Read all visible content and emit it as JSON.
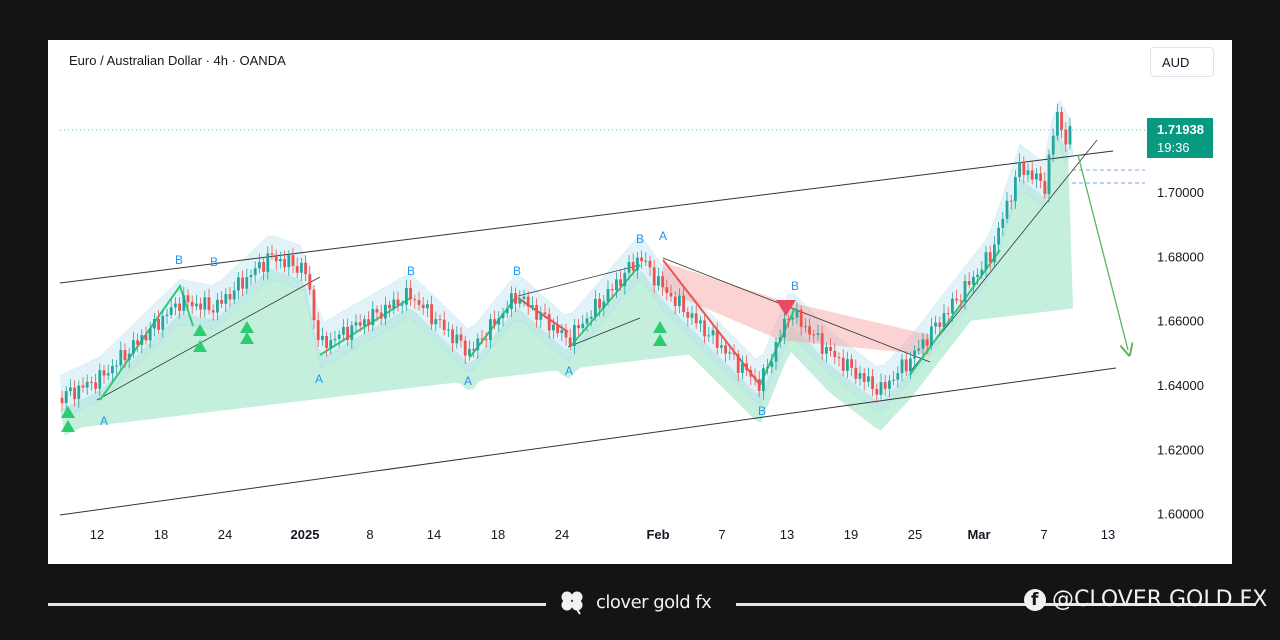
{
  "chart": {
    "title": "Euro / Australian Dollar · 4h · OANDA",
    "currency": "AUD",
    "last_price": "1.71938",
    "countdown": "19:36"
  },
  "chart_data": {
    "type": "candlestick",
    "symbol": "EURAUD",
    "timeframe": "4h",
    "x_ticks": [
      "12",
      "18",
      "24",
      "2025",
      "8",
      "14",
      "18",
      "24",
      "Feb",
      "7",
      "13",
      "19",
      "25",
      "Mar",
      "7",
      "13"
    ],
    "y_ticks": [
      "1.60000",
      "1.62000",
      "1.64000",
      "1.66000",
      "1.68000",
      "1.70000"
    ],
    "ylim": [
      1.6,
      1.73
    ],
    "price_path": [
      [
        "12",
        1.642
      ],
      [
        "18",
        1.666
      ],
      [
        "24",
        1.672
      ],
      [
        "2025",
        1.678
      ],
      [
        "8",
        1.656
      ],
      [
        "14",
        1.652
      ],
      [
        "18",
        1.662
      ],
      [
        "24",
        1.656
      ],
      [
        "Feb",
        1.668
      ],
      [
        "7",
        1.647
      ],
      [
        "13",
        1.658
      ],
      [
        "19",
        1.643
      ],
      [
        "25",
        1.65
      ],
      [
        "Mar",
        1.672
      ],
      [
        "7",
        1.708
      ],
      [
        "13",
        1.719
      ]
    ],
    "last_price": 1.71938,
    "levels": [
      1.7068,
      1.7025
    ],
    "wave_labels": [
      "A",
      "B",
      "B",
      "A",
      "B",
      "A",
      "B",
      "A",
      "B",
      "A",
      "B",
      "B"
    ],
    "annotations": [
      "ascending channel",
      "projected drop arrow"
    ],
    "colors": {
      "up": "#26a69a",
      "down": "#ef5350",
      "cloud": "#7fdcb4",
      "band": "#bde6f2",
      "red_band": "#f5a8a6",
      "label": "#2196f3"
    }
  },
  "footer": {
    "brand": "clover gold fx",
    "handle": "@CLOVER GOLD FX"
  }
}
